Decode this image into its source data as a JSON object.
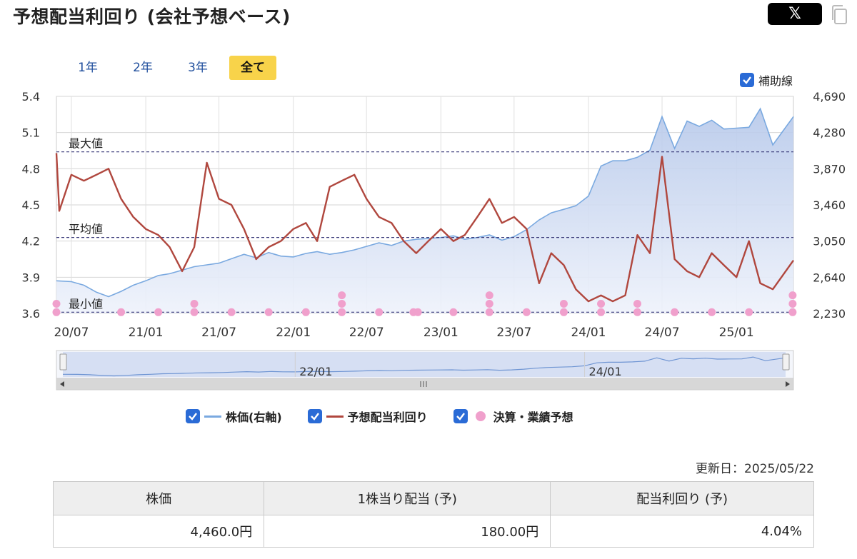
{
  "header": {
    "title": "予想配当利回り (会社予想ベース)",
    "share_label": "𝕏"
  },
  "range_tabs": [
    "1年",
    "2年",
    "3年",
    "全て"
  ],
  "range_tabs_active": 3,
  "aux_lines": {
    "label": "補助線",
    "checked": true
  },
  "legend": [
    {
      "label": "株価(右軸)",
      "color": "#7aa9e0",
      "checked": true,
      "marker": "line"
    },
    {
      "label": "予想配当利回り",
      "color": "#b0473e",
      "checked": true,
      "marker": "line"
    },
    {
      "label": "決算・業績予想",
      "color": "#f0a0cc",
      "checked": true,
      "marker": "dot"
    }
  ],
  "updated": "更新日：2025/05/22",
  "summary": {
    "headers": [
      "株価",
      "1株当り配当 (予)",
      "配当利回り (予)"
    ],
    "values": [
      "4,460.0円",
      "180.00円",
      "4.04%"
    ]
  },
  "chart_data": {
    "type": "line",
    "x_range": [
      "2020-05-25",
      "2025-05-22"
    ],
    "x_ticks": [
      "20/07",
      "21/01",
      "21/07",
      "22/01",
      "22/07",
      "23/01",
      "23/07",
      "24/01",
      "24/07",
      "25/01"
    ],
    "y_left": {
      "ticks": [
        "5.4",
        "5.1",
        "4.8",
        "4.5",
        "4.2",
        "3.9",
        "3.6"
      ],
      "min": 3.6,
      "max": 5.4
    },
    "y_right": {
      "ticks": [
        "4,690",
        "4,280",
        "3,870",
        "3,460",
        "3,050",
        "2,640",
        "2,230"
      ],
      "min": 2230,
      "max": 4690
    },
    "grid": true,
    "reference_lines": [
      {
        "label": "最大値",
        "value": 4.94
      },
      {
        "label": "平均値",
        "value": 4.23
      },
      {
        "label": "最小値",
        "value": 3.61
      }
    ],
    "series": [
      {
        "name": "株価(右軸)",
        "axis": "right",
        "color": "#7aa9e0",
        "fill": true,
        "x": [
          "2020-05-25",
          "2020-07-01",
          "2020-08-01",
          "2020-09-01",
          "2020-10-01",
          "2020-11-01",
          "2020-12-01",
          "2021-01-01",
          "2021-02-01",
          "2021-03-01",
          "2021-04-01",
          "2021-05-01",
          "2021-06-01",
          "2021-07-01",
          "2021-08-01",
          "2021-09-01",
          "2021-10-01",
          "2021-11-01",
          "2021-12-01",
          "2022-01-01",
          "2022-02-01",
          "2022-03-01",
          "2022-04-01",
          "2022-05-01",
          "2022-06-01",
          "2022-07-01",
          "2022-08-01",
          "2022-09-01",
          "2022-10-01",
          "2022-11-01",
          "2022-12-01",
          "2023-01-01",
          "2023-02-01",
          "2023-03-01",
          "2023-04-01",
          "2023-05-01",
          "2023-06-01",
          "2023-07-01",
          "2023-08-01",
          "2023-09-01",
          "2023-10-01",
          "2023-11-01",
          "2023-12-01",
          "2024-01-01",
          "2024-02-01",
          "2024-03-01",
          "2024-04-01",
          "2024-05-01",
          "2024-06-01",
          "2024-07-01",
          "2024-08-01",
          "2024-09-01",
          "2024-10-01",
          "2024-11-01",
          "2024-12-01",
          "2025-01-01",
          "2025-02-01",
          "2025-03-01",
          "2025-04-01",
          "2025-05-22"
        ],
        "values": [
          2600,
          2590,
          2550,
          2470,
          2420,
          2480,
          2550,
          2600,
          2660,
          2680,
          2720,
          2760,
          2780,
          2800,
          2850,
          2900,
          2860,
          2920,
          2880,
          2870,
          2910,
          2930,
          2900,
          2920,
          2950,
          2990,
          3030,
          3000,
          3050,
          3070,
          3080,
          3090,
          3110,
          3070,
          3090,
          3120,
          3060,
          3100,
          3180,
          3290,
          3370,
          3410,
          3450,
          3560,
          3900,
          3960,
          3960,
          4000,
          4080,
          4460,
          4100,
          4410,
          4350,
          4420,
          4320,
          4330,
          4340,
          4550,
          4140,
          4460
        ]
      },
      {
        "name": "予想配当利回り",
        "axis": "left",
        "color": "#b0473e",
        "fill": false,
        "x": [
          "2020-05-25",
          "2020-06-01",
          "2020-07-01",
          "2020-08-01",
          "2020-09-01",
          "2020-10-01",
          "2020-11-01",
          "2020-12-01",
          "2021-01-01",
          "2021-02-01",
          "2021-03-01",
          "2021-04-01",
          "2021-05-01",
          "2021-06-01",
          "2021-07-01",
          "2021-08-01",
          "2021-09-01",
          "2021-10-01",
          "2021-11-01",
          "2021-12-01",
          "2022-01-01",
          "2022-02-01",
          "2022-03-01",
          "2022-04-01",
          "2022-05-01",
          "2022-06-01",
          "2022-07-01",
          "2022-08-01",
          "2022-09-01",
          "2022-10-01",
          "2022-11-01",
          "2022-12-01",
          "2023-01-01",
          "2023-02-01",
          "2023-03-01",
          "2023-04-01",
          "2023-05-01",
          "2023-06-01",
          "2023-07-01",
          "2023-08-01",
          "2023-09-01",
          "2023-10-01",
          "2023-11-01",
          "2023-12-01",
          "2024-01-01",
          "2024-02-01",
          "2024-03-01",
          "2024-04-01",
          "2024-05-01",
          "2024-06-01",
          "2024-07-01",
          "2024-08-01",
          "2024-09-01",
          "2024-10-01",
          "2024-11-01",
          "2024-12-01",
          "2025-01-01",
          "2025-02-01",
          "2025-03-01",
          "2025-04-01",
          "2025-05-22"
        ],
        "values": [
          4.93,
          4.45,
          4.75,
          4.7,
          4.75,
          4.8,
          4.55,
          4.4,
          4.3,
          4.25,
          4.15,
          3.95,
          4.15,
          4.85,
          4.55,
          4.5,
          4.3,
          4.05,
          4.15,
          4.2,
          4.3,
          4.35,
          4.2,
          4.65,
          4.7,
          4.75,
          4.55,
          4.4,
          4.35,
          4.2,
          4.1,
          4.2,
          4.3,
          4.2,
          4.25,
          4.4,
          4.55,
          4.35,
          4.4,
          4.3,
          3.85,
          4.1,
          4.0,
          3.8,
          3.7,
          3.75,
          3.7,
          3.75,
          4.25,
          4.1,
          4.9,
          4.05,
          3.95,
          3.9,
          4.1,
          4.0,
          3.9,
          4.2,
          3.85,
          3.8,
          4.04
        ]
      }
    ],
    "events": {
      "name": "決算・業績予想",
      "color": "#f0a0cc",
      "points": [
        {
          "x": "2020-05-25",
          "y": 3.61
        },
        {
          "x": "2020-05-25",
          "y": 3.68
        },
        {
          "x": "2020-11-01",
          "y": 3.61
        },
        {
          "x": "2021-02-01",
          "y": 3.61
        },
        {
          "x": "2021-05-01",
          "y": 3.61
        },
        {
          "x": "2021-05-01",
          "y": 3.68
        },
        {
          "x": "2021-08-01",
          "y": 3.61
        },
        {
          "x": "2021-11-01",
          "y": 3.61
        },
        {
          "x": "2022-02-01",
          "y": 3.61
        },
        {
          "x": "2022-05-01",
          "y": 3.61
        },
        {
          "x": "2022-05-01",
          "y": 3.68
        },
        {
          "x": "2022-05-01",
          "y": 3.75
        },
        {
          "x": "2022-08-01",
          "y": 3.61
        },
        {
          "x": "2022-10-25",
          "y": 3.61
        },
        {
          "x": "2022-11-05",
          "y": 3.61
        },
        {
          "x": "2023-02-01",
          "y": 3.61
        },
        {
          "x": "2023-05-01",
          "y": 3.61
        },
        {
          "x": "2023-05-01",
          "y": 3.68
        },
        {
          "x": "2023-05-01",
          "y": 3.75
        },
        {
          "x": "2023-08-01",
          "y": 3.61
        },
        {
          "x": "2023-11-01",
          "y": 3.61
        },
        {
          "x": "2023-11-01",
          "y": 3.68
        },
        {
          "x": "2024-02-01",
          "y": 3.61
        },
        {
          "x": "2024-02-01",
          "y": 3.68
        },
        {
          "x": "2024-05-01",
          "y": 3.61
        },
        {
          "x": "2024-05-01",
          "y": 3.68
        },
        {
          "x": "2024-08-01",
          "y": 3.61
        },
        {
          "x": "2024-11-01",
          "y": 3.61
        },
        {
          "x": "2025-02-01",
          "y": 3.61
        },
        {
          "x": "2025-05-20",
          "y": 3.61
        },
        {
          "x": "2025-05-20",
          "y": 3.68
        },
        {
          "x": "2025-05-20",
          "y": 3.75
        }
      ]
    },
    "navigator": {
      "x_ticks": [
        "22/01",
        "24/01"
      ]
    }
  }
}
